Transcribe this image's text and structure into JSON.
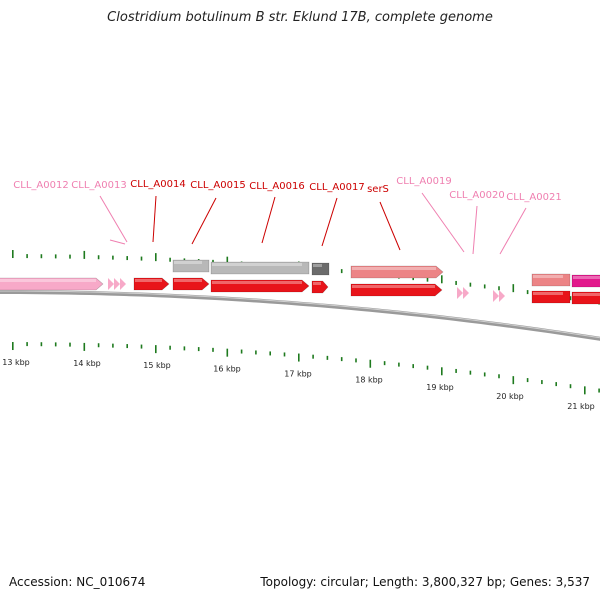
{
  "title": "Clostridium botulinum B str. Eklund 17B, complete genome",
  "footer": {
    "accession": "Accession: NC_010674",
    "summary": "Topology: circular; Length: 3,800,327 bp; Genes: 3,537"
  },
  "colors": {
    "cds": "#e8141a",
    "highlight_label": "#cc0000",
    "muted_label": "#ef7fb0",
    "pink_gene": "#f7a9c8",
    "salmon": "#ec8486",
    "grey": "#b8b8b8",
    "dark_grey": "#6b6b6b",
    "magenta": "#e2198c",
    "tick": "#1e7a1e",
    "backbone": "#8a8a8a"
  },
  "gene_labels": [
    {
      "name": "CLL_A0012",
      "style": "muted"
    },
    {
      "name": "CLL_A0013",
      "style": "muted"
    },
    {
      "name": "CLL_A0014",
      "style": "highlight"
    },
    {
      "name": "CLL_A0015",
      "style": "highlight"
    },
    {
      "name": "CLL_A0016",
      "style": "highlight"
    },
    {
      "name": "CLL_A0017",
      "style": "highlight"
    },
    {
      "name": "serS",
      "style": "highlight"
    },
    {
      "name": "CLL_A0019",
      "style": "muted"
    },
    {
      "name": "CLL_A0020",
      "style": "muted"
    },
    {
      "name": "CLL_A0021",
      "style": "muted"
    }
  ],
  "kbp_labels": [
    "13 kbp",
    "14 kbp",
    "15 kbp",
    "16 kbp",
    "17 kbp",
    "18 kbp",
    "19 kbp",
    "20 kbp",
    "21 kbp"
  ]
}
